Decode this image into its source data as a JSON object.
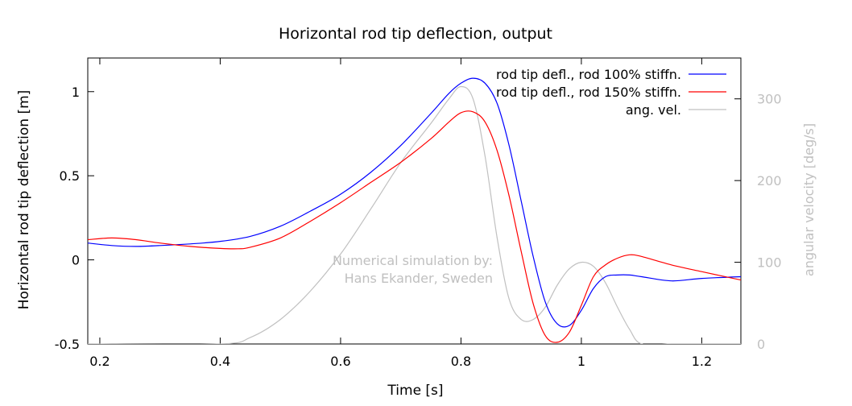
{
  "chart_data": {
    "type": "line",
    "title": "Horizontal rod tip deflection, output",
    "xlabel": "Time [s]",
    "ylabel": "Horizontal rod tip deflection [m]",
    "y2label": "angular velocity  [deg/s]",
    "xlim": [
      0.18,
      1.265
    ],
    "ylim": [
      -0.5,
      1.2
    ],
    "y2lim": [
      0,
      350
    ],
    "x_ticks": [
      0.2,
      0.4,
      0.6,
      0.8,
      1,
      1.2
    ],
    "x_tick_labels": [
      "0.2",
      "0.4",
      "0.6",
      "0.8",
      "1",
      "1.2"
    ],
    "y_ticks": [
      -0.5,
      0,
      0.5,
      1
    ],
    "y_tick_labels": [
      "-0.5",
      "0",
      "0.5",
      "1"
    ],
    "y2_ticks": [
      0,
      100,
      200,
      300
    ],
    "y2_tick_labels": [
      "0",
      "100",
      "200",
      "300"
    ],
    "grid": false,
    "legend_position": "top-right",
    "annotation": [
      "Numerical simulation by:",
      "Hans Ekander, Sweden"
    ],
    "series": [
      {
        "name": "rod tip defl., rod 100% stiffn.",
        "color": "#0000ff",
        "axis": "y",
        "x": [
          0.18,
          0.22,
          0.26,
          0.3,
          0.35,
          0.4,
          0.45,
          0.5,
          0.55,
          0.6,
          0.65,
          0.7,
          0.75,
          0.78,
          0.8,
          0.82,
          0.84,
          0.86,
          0.88,
          0.9,
          0.92,
          0.94,
          0.96,
          0.98,
          1.0,
          1.02,
          1.04,
          1.06,
          1.08,
          1.1,
          1.15,
          1.2,
          1.265
        ],
        "y": [
          0.1,
          0.085,
          0.08,
          0.085,
          0.095,
          0.11,
          0.14,
          0.2,
          0.29,
          0.39,
          0.52,
          0.68,
          0.87,
          0.99,
          1.05,
          1.08,
          1.05,
          0.93,
          0.68,
          0.35,
          0.02,
          -0.25,
          -0.38,
          -0.39,
          -0.3,
          -0.17,
          -0.1,
          -0.09,
          -0.09,
          -0.1,
          -0.125,
          -0.11,
          -0.1
        ]
      },
      {
        "name": "rod tip defl., rod 150% stiffn.",
        "color": "#ff0000",
        "axis": "y",
        "x": [
          0.18,
          0.22,
          0.26,
          0.3,
          0.35,
          0.4,
          0.43,
          0.45,
          0.5,
          0.55,
          0.6,
          0.65,
          0.7,
          0.75,
          0.78,
          0.8,
          0.82,
          0.84,
          0.86,
          0.88,
          0.9,
          0.92,
          0.94,
          0.96,
          0.98,
          1.0,
          1.02,
          1.04,
          1.06,
          1.08,
          1.1,
          1.15,
          1.2,
          1.265
        ],
        "y": [
          0.12,
          0.13,
          0.12,
          0.1,
          0.08,
          0.068,
          0.066,
          0.075,
          0.13,
          0.23,
          0.34,
          0.46,
          0.58,
          0.72,
          0.82,
          0.875,
          0.88,
          0.82,
          0.65,
          0.38,
          0.05,
          -0.26,
          -0.45,
          -0.49,
          -0.43,
          -0.27,
          -0.1,
          -0.03,
          0.01,
          0.03,
          0.02,
          -0.03,
          -0.07,
          -0.12
        ]
      },
      {
        "name": "ang. vel.",
        "color": "#c0c0c0",
        "axis": "y2",
        "x": [
          0.18,
          0.4,
          0.45,
          0.5,
          0.55,
          0.6,
          0.65,
          0.7,
          0.75,
          0.78,
          0.8,
          0.82,
          0.84,
          0.86,
          0.88,
          0.9,
          0.92,
          0.94,
          0.96,
          0.98,
          1.0,
          1.02,
          1.04,
          1.06,
          1.08,
          1.1,
          1.15,
          1.2,
          1.265
        ],
        "y": [
          0,
          0,
          8,
          30,
          65,
          110,
          165,
          222,
          270,
          300,
          315,
          300,
          230,
          130,
          55,
          30,
          30,
          45,
          72,
          92,
          100,
          95,
          75,
          45,
          18,
          0,
          0,
          0,
          0
        ]
      }
    ]
  }
}
